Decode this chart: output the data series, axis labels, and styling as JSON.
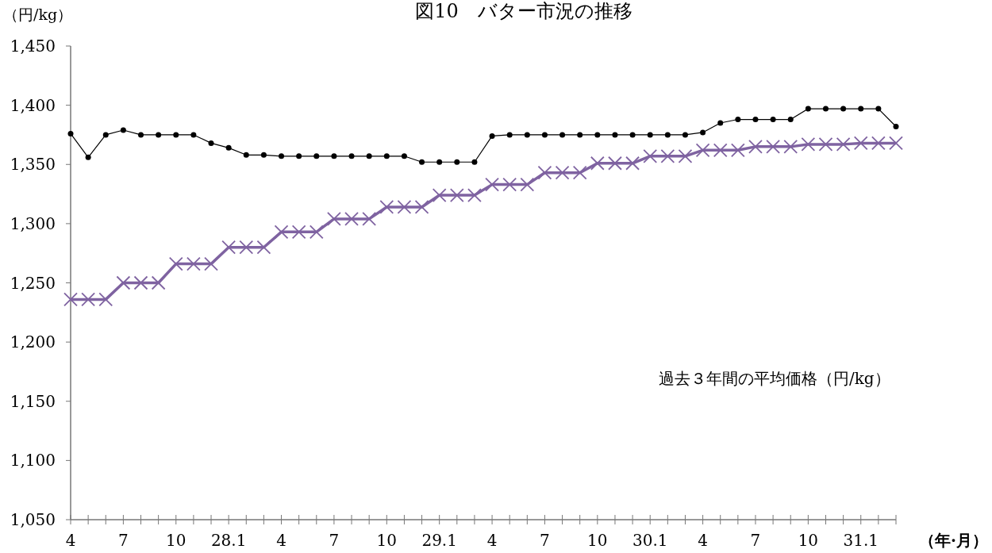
{
  "chart_data": {
    "type": "line",
    "title": "図10　バター市況の推移",
    "ylabel": "（円/kg）",
    "xlabel": "（年·月）",
    "categories": [
      "4",
      null,
      null,
      "7",
      null,
      null,
      "10",
      null,
      null,
      "28.1",
      null,
      null,
      "4",
      null,
      null,
      "7",
      null,
      null,
      "10",
      null,
      null,
      "29.1",
      null,
      null,
      "4",
      null,
      null,
      "7",
      null,
      null,
      "10",
      null,
      null,
      "30.1",
      null,
      null,
      "4",
      null,
      null,
      "7",
      null,
      null,
      "10",
      null,
      null,
      "31.1",
      null,
      null
    ],
    "series": [
      {
        "color": "#000000",
        "marker": "circle",
        "values": [
          1376,
          1356,
          1375,
          1379,
          1375,
          1375,
          1375,
          1375,
          1368,
          1364,
          1358,
          1358,
          1357,
          1357,
          1357,
          1357,
          1357,
          1357,
          1357,
          1357,
          1352,
          1352,
          1352,
          1352,
          1374,
          1375,
          1375,
          1375,
          1375,
          1375,
          1375,
          1375,
          1375,
          1375,
          1375,
          1375,
          1377,
          1385,
          1388,
          1388,
          1388,
          1388,
          1397,
          1397,
          1397,
          1397,
          1397,
          1382
        ]
      },
      {
        "color": "#7f63a1",
        "marker": "cross",
        "values": [
          1236,
          1236,
          1236,
          1250,
          1250,
          1250,
          1266,
          1266,
          1266,
          1280,
          1280,
          1280,
          1293,
          1293,
          1293,
          1304,
          1304,
          1304,
          1314,
          1314,
          1314,
          1324,
          1324,
          1324,
          1333,
          1333,
          1333,
          1343,
          1343,
          1343,
          1351,
          1351,
          1351,
          1357,
          1357,
          1357,
          1362,
          1362,
          1362,
          1365,
          1365,
          1365,
          1367,
          1367,
          1367,
          1368,
          1368,
          1368
        ]
      }
    ],
    "ylim": [
      1050,
      1450
    ],
    "yticks": [
      {
        "value": 1050,
        "label": "1,050"
      },
      {
        "value": 1100,
        "label": "1,100"
      },
      {
        "value": 1150,
        "label": "1,150"
      },
      {
        "value": 1200,
        "label": "1,200"
      },
      {
        "value": 1250,
        "label": "1,250"
      },
      {
        "value": 1300,
        "label": "1,300"
      },
      {
        "value": 1350,
        "label": "1,350"
      },
      {
        "value": 1400,
        "label": "1,400"
      },
      {
        "value": 1450,
        "label": "1,450"
      }
    ],
    "annotations": [
      "過去３年間の平均価格（円/kg）"
    ],
    "grid": false
  }
}
